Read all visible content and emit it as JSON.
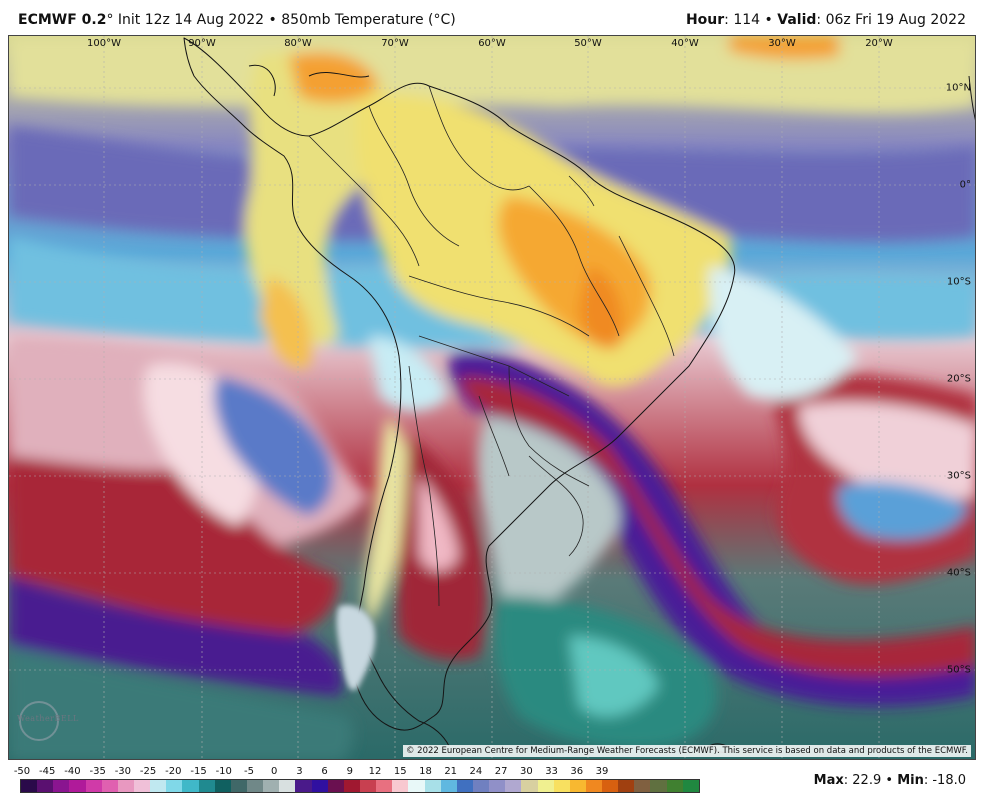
{
  "header": {
    "model": "ECMWF 0.2",
    "degree": "°",
    "init": "Init 12z 14 Aug 2022",
    "sep": "•",
    "field": "850mb Temperature (°C)",
    "hour_label": "Hour",
    "hour_value": "114",
    "valid_label": "Valid",
    "valid_value": "06z Fri 19 Aug 2022"
  },
  "map": {
    "lon_labels": [
      "100°W",
      "90°W",
      "80°W",
      "70°W",
      "60°W",
      "50°W",
      "40°W",
      "30°W",
      "20°W"
    ],
    "lat_labels": [
      "10°N",
      "0°",
      "10°S",
      "20°S",
      "30°S",
      "40°S",
      "50°S"
    ],
    "credit": "© 2022 European Centre for Medium-Range Weather Forecasts (ECMWF). This service is based on data and products of the ECMWF.",
    "logo": "WeatherBELL"
  },
  "legend": {
    "ticks": [
      "-50",
      "-45",
      "-40",
      "-35",
      "-30",
      "-25",
      "-20",
      "-15",
      "-10",
      "-5",
      "0",
      "3",
      "6",
      "9",
      "12",
      "15",
      "18",
      "21",
      "24",
      "27",
      "30",
      "33",
      "36",
      "39"
    ],
    "colors": [
      "#2a0a4a",
      "#5a1070",
      "#8a1590",
      "#b01a9a",
      "#d03aa8",
      "#e060b0",
      "#e898c0",
      "#f0c0d8",
      "#c0e8f0",
      "#80d8e8",
      "#40b8c8",
      "#208a90",
      "#106060",
      "#406868",
      "#708888",
      "#a0b0b0",
      "#d8e0e0",
      "#4a1a8a",
      "#3010a0",
      "#6a1050",
      "#a01830",
      "#c84050",
      "#e87080",
      "#f8c8d0",
      "#e8f8f8",
      "#a8e0e8",
      "#60b8e0",
      "#4070c0",
      "#7080c0",
      "#9090c8",
      "#b0a8d0",
      "#d8d0a0",
      "#f0f090",
      "#f8e060",
      "#f8b830",
      "#f08820",
      "#d86010",
      "#a04010",
      "#806040",
      "#607040",
      "#408030",
      "#208840"
    ],
    "max_label": "Max",
    "max_value": "22.9",
    "min_label": "Min",
    "min_value": "-18.0"
  }
}
